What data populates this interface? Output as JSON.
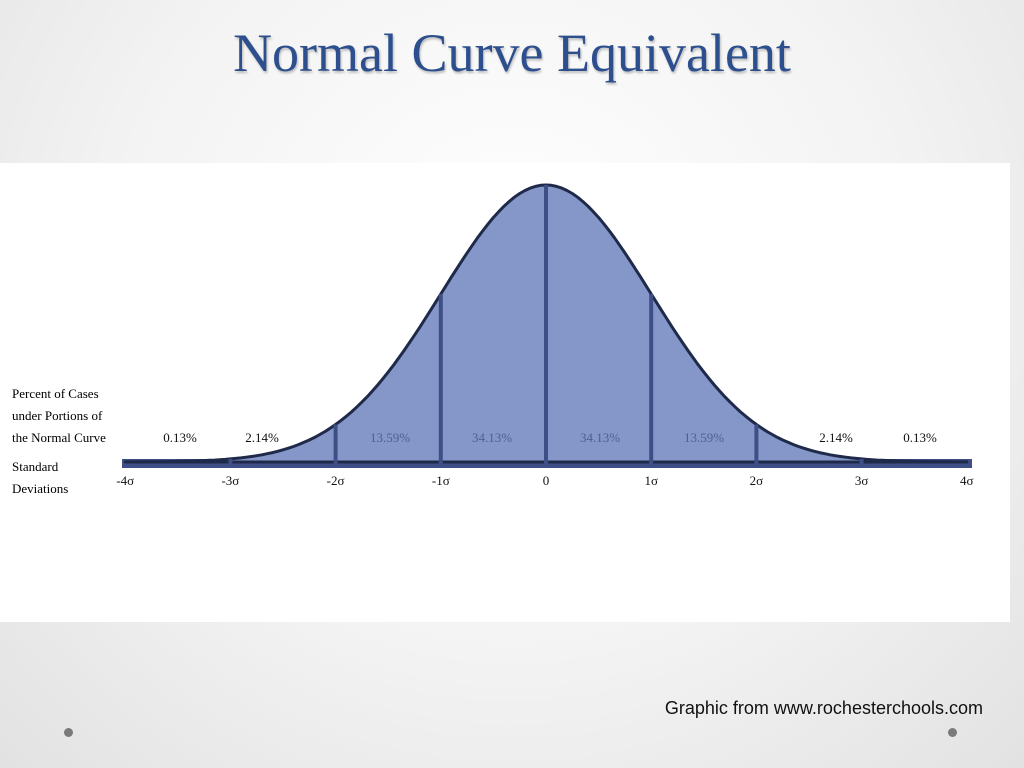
{
  "title": "Normal Curve Equivalent",
  "figure": {
    "percent_label": [
      "Percent of Cases",
      "under Portions of",
      "the Normal Curve"
    ],
    "deviation_label": [
      "Standard",
      "Deviations"
    ],
    "percents": [
      "0.13%",
      "2.14%",
      "13.59%",
      "34.13%",
      "34.13%",
      "13.59%",
      "2.14%",
      "0.13%"
    ],
    "deviations": [
      "-4σ",
      "-3σ",
      "-2σ",
      "-1σ",
      "0",
      "1σ",
      "2σ",
      "3σ",
      "4σ"
    ]
  },
  "source": "Graphic from www.rochesterchools.com"
}
